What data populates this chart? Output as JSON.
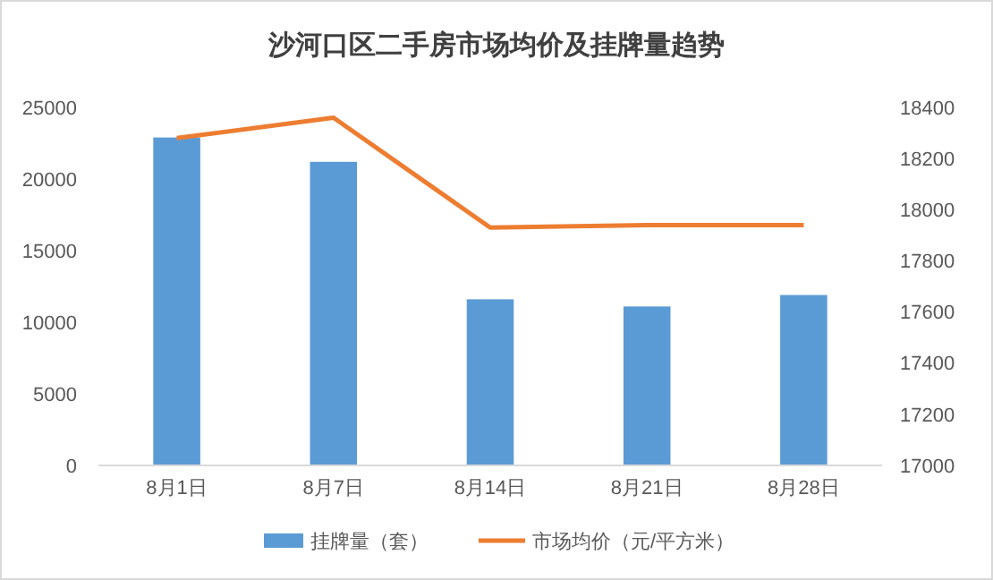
{
  "chart_data": {
    "type": "bar",
    "title": "沙河口区二手房市场均价及挂牌量趋势",
    "categories": [
      "8月1日",
      "8月7日",
      "8月14日",
      "8月21日",
      "8月28日"
    ],
    "series": [
      {
        "name": "挂牌量（套）",
        "color": "#5b9bd5",
        "values": [
          22900,
          21200,
          11600,
          11100,
          11900
        ]
      },
      {
        "name": "市场均价（元/平方米）",
        "type": "line",
        "axis": "y2",
        "color": "#ed7d31",
        "values": [
          18280,
          18360,
          17930,
          17940,
          17940
        ]
      }
    ],
    "ylim": [
      0,
      25000
    ],
    "yticks": [
      0,
      5000,
      10000,
      15000,
      20000,
      25000
    ],
    "y2lim": [
      17000,
      18400
    ],
    "y2ticks": [
      17000,
      17200,
      17400,
      17600,
      17800,
      18000,
      18200,
      18400
    ],
    "grid": false,
    "legend": "bottom",
    "marker": "none",
    "line_style": "solid"
  }
}
